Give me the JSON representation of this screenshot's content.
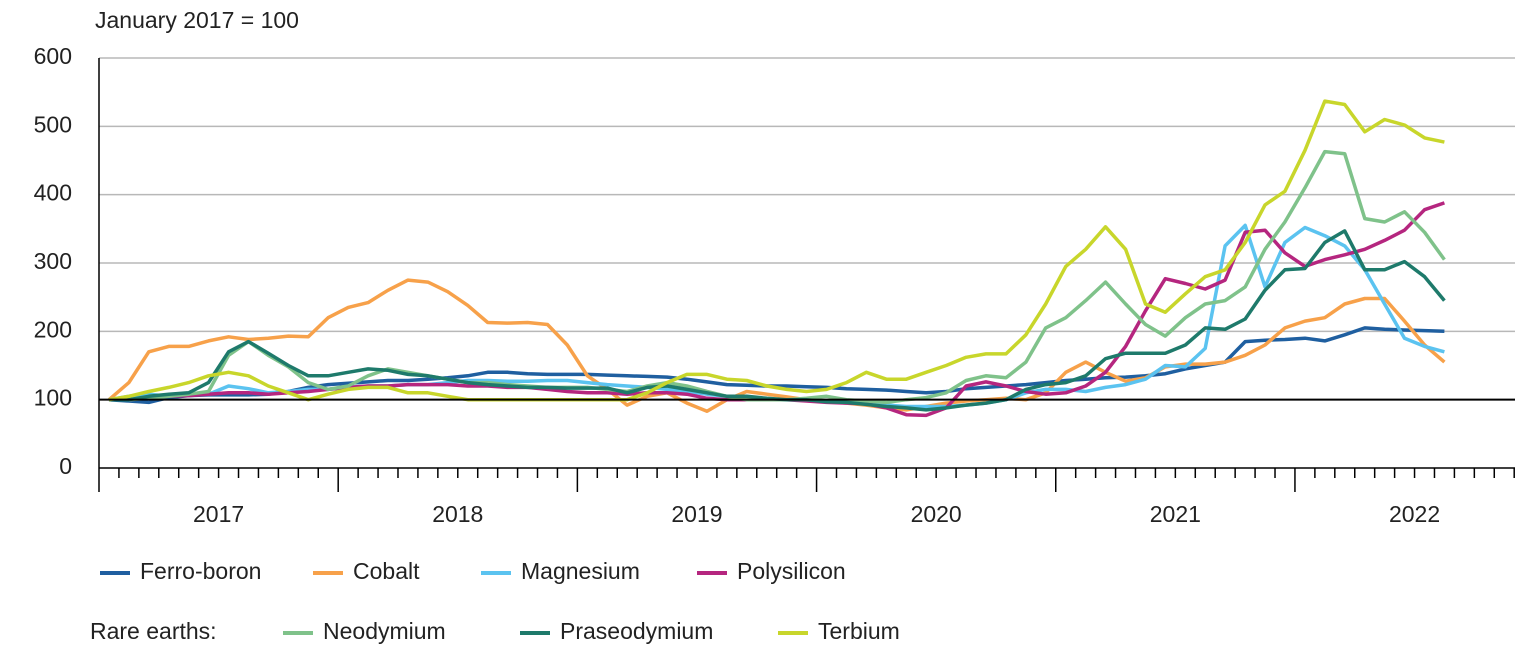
{
  "chart_data": {
    "type": "line",
    "subtitle": "January 2017 = 100",
    "x": [
      2017.042,
      2017.125,
      2017.208,
      2017.292,
      2017.375,
      2017.458,
      2017.542,
      2017.625,
      2017.708,
      2017.792,
      2017.875,
      2017.958,
      2018.042,
      2018.125,
      2018.208,
      2018.292,
      2018.375,
      2018.458,
      2018.542,
      2018.625,
      2018.708,
      2018.792,
      2018.875,
      2018.958,
      2019.042,
      2019.125,
      2019.208,
      2019.292,
      2019.375,
      2019.458,
      2019.542,
      2019.625,
      2019.708,
      2019.792,
      2019.875,
      2019.958,
      2020.042,
      2020.125,
      2020.208,
      2020.292,
      2020.375,
      2020.458,
      2020.542,
      2020.625,
      2020.708,
      2020.792,
      2020.875,
      2020.958,
      2021.042,
      2021.125,
      2021.208,
      2021.292,
      2021.375,
      2021.458,
      2021.542,
      2021.625,
      2021.708,
      2021.792,
      2021.875,
      2021.958,
      2022.042,
      2022.125,
      2022.208,
      2022.292,
      2022.375,
      2022.458,
      2022.542,
      2022.625
    ],
    "series": [
      {
        "name": "Ferro-boron",
        "color": "#1f5fa0",
        "values": [
          100,
          98,
          96,
          103,
          106,
          107,
          107,
          107,
          108,
          112,
          118,
          122,
          124,
          126,
          128,
          128,
          130,
          132,
          135,
          140,
          140,
          138,
          137,
          137,
          137,
          136,
          135,
          134,
          133,
          130,
          126,
          122,
          121,
          120,
          120,
          119,
          118,
          116,
          115,
          114,
          112,
          110,
          112,
          116,
          118,
          120,
          122,
          125,
          128,
          130,
          132,
          133,
          135,
          138,
          145,
          150,
          155,
          185,
          187,
          188,
          190,
          186,
          195,
          205,
          203,
          202,
          201,
          200
        ]
      },
      {
        "name": "Cobalt",
        "color": "#f7a14a",
        "values": [
          100,
          125,
          170,
          178,
          178,
          186,
          192,
          188,
          190,
          193,
          192,
          220,
          235,
          242,
          260,
          275,
          272,
          258,
          238,
          213,
          212,
          213,
          210,
          180,
          135,
          115,
          92,
          105,
          110,
          95,
          83,
          100,
          112,
          108,
          104,
          100,
          98,
          95,
          92,
          88,
          85,
          90,
          95,
          98,
          100,
          102,
          100,
          110,
          140,
          155,
          140,
          127,
          132,
          148,
          152,
          152,
          155,
          165,
          180,
          205,
          215,
          220,
          240,
          248,
          248,
          215,
          180,
          155
        ]
      },
      {
        "name": "Magnesium",
        "color": "#5bc3f0",
        "values": [
          100,
          105,
          108,
          105,
          108,
          108,
          120,
          116,
          110,
          112,
          115,
          115,
          118,
          120,
          120,
          122,
          122,
          125,
          128,
          128,
          127,
          127,
          128,
          128,
          125,
          122,
          120,
          118,
          115,
          112,
          108,
          105,
          103,
          100,
          100,
          100,
          98,
          96,
          94,
          92,
          90,
          90,
          90,
          92,
          95,
          100,
          110,
          115,
          115,
          112,
          118,
          122,
          130,
          150,
          148,
          175,
          325,
          355,
          265,
          330,
          352,
          340,
          325,
          290,
          240,
          190,
          178,
          170
        ]
      },
      {
        "name": "Polysilicon",
        "color": "#b5267f",
        "values": [
          100,
          100,
          103,
          105,
          106,
          108,
          110,
          110,
          108,
          110,
          112,
          115,
          118,
          120,
          120,
          122,
          122,
          122,
          120,
          120,
          118,
          118,
          115,
          112,
          110,
          110,
          108,
          110,
          110,
          108,
          102,
          100,
          100,
          100,
          100,
          98,
          96,
          95,
          94,
          88,
          78,
          77,
          88,
          120,
          126,
          120,
          112,
          108,
          110,
          120,
          140,
          178,
          230,
          277,
          270,
          262,
          275,
          345,
          348,
          315,
          295,
          305,
          312,
          320,
          333,
          348,
          378,
          388
        ]
      },
      {
        "name": "Neodymium",
        "color": "#7fc28a",
        "values": [
          100,
          100,
          102,
          105,
          108,
          112,
          165,
          185,
          165,
          148,
          125,
          115,
          120,
          135,
          145,
          140,
          135,
          130,
          125,
          125,
          122,
          120,
          118,
          118,
          118,
          115,
          112,
          120,
          125,
          120,
          112,
          105,
          100,
          100,
          100,
          102,
          105,
          100,
          98,
          96,
          100,
          103,
          110,
          128,
          135,
          132,
          155,
          205,
          220,
          245,
          272,
          240,
          210,
          193,
          220,
          240,
          245,
          265,
          320,
          360,
          410,
          463,
          460,
          365,
          360,
          375,
          345,
          305
        ]
      },
      {
        "name": "Praseodymium",
        "color": "#1e7a6b",
        "values": [
          100,
          100,
          105,
          108,
          110,
          125,
          170,
          185,
          168,
          150,
          135,
          135,
          140,
          145,
          143,
          137,
          135,
          130,
          125,
          122,
          120,
          118,
          118,
          117,
          117,
          117,
          110,
          118,
          120,
          115,
          110,
          105,
          105,
          102,
          100,
          100,
          97,
          96,
          93,
          90,
          88,
          85,
          88,
          92,
          95,
          100,
          115,
          122,
          125,
          135,
          160,
          168,
          168,
          168,
          180,
          205,
          203,
          218,
          260,
          290,
          292,
          330,
          347,
          290,
          290,
          302,
          280,
          245
        ]
      },
      {
        "name": "Terbium",
        "color": "#c8d62b",
        "values": [
          100,
          105,
          112,
          118,
          125,
          135,
          140,
          135,
          120,
          110,
          100,
          108,
          115,
          118,
          118,
          110,
          110,
          105,
          100,
          100,
          100,
          100,
          100,
          100,
          100,
          100,
          100,
          110,
          125,
          137,
          137,
          130,
          128,
          120,
          115,
          112,
          115,
          125,
          140,
          130,
          130,
          140,
          150,
          162,
          167,
          167,
          195,
          240,
          295,
          320,
          353,
          320,
          240,
          228,
          255,
          280,
          290,
          330,
          385,
          405,
          465,
          537,
          532,
          492,
          510,
          502,
          483,
          477
        ]
      }
    ],
    "legend_group_label": "Rare earths:",
    "xlim": [
      2017,
      2022.92
    ],
    "xticks": [
      {
        "value": 2017.5,
        "label": "2017"
      },
      {
        "value": 2018.5,
        "label": "2018"
      },
      {
        "value": 2019.5,
        "label": "2019"
      },
      {
        "value": 2020.5,
        "label": "2020"
      },
      {
        "value": 2021.5,
        "label": "2021"
      },
      {
        "value": 2022.5,
        "label": "2022"
      }
    ],
    "ylim": [
      0,
      600
    ],
    "yticks": [
      0,
      100,
      200,
      300,
      400,
      500,
      600
    ],
    "hline": 100,
    "grid": true
  }
}
